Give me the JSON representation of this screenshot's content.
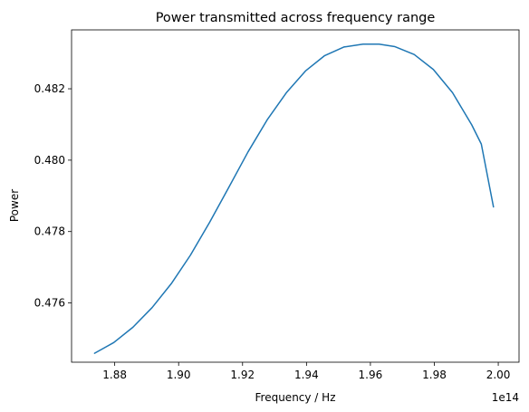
{
  "chart_data": {
    "type": "line",
    "title": "Power transmitted across frequency range",
    "xlabel": "Frequency / Hz",
    "ylabel": "Power",
    "x_offset_label": "1e14",
    "xlim": [
      1.8665,
      2.0065
    ],
    "ylim": [
      0.47434,
      0.48365
    ],
    "x_ticks": [
      1.88,
      1.9,
      1.92,
      1.94,
      1.96,
      1.98,
      2.0
    ],
    "x_tick_labels": [
      "1.88",
      "1.90",
      "1.92",
      "1.94",
      "1.96",
      "1.98",
      "2.00"
    ],
    "y_ticks": [
      0.476,
      0.478,
      0.48,
      0.482
    ],
    "y_tick_labels": [
      "0.476",
      "0.478",
      "0.480",
      "0.482"
    ],
    "grid": false,
    "series": [
      {
        "color": "#1f77b4",
        "x": [
          1.8737,
          1.8797,
          1.8857,
          1.8917,
          1.8977,
          1.9037,
          1.9097,
          1.9157,
          1.9217,
          1.9277,
          1.9337,
          1.9397,
          1.9457,
          1.9517,
          1.9577,
          1.9627,
          1.9677,
          1.9737,
          1.9797,
          1.9857,
          1.9917,
          1.9947,
          1.9985
        ],
        "y": [
          0.47459,
          0.47489,
          0.47532,
          0.47587,
          0.47654,
          0.47734,
          0.47826,
          0.47924,
          0.48023,
          0.48113,
          0.48189,
          0.4825,
          0.48293,
          0.48317,
          0.48325,
          0.48325,
          0.48318,
          0.48296,
          0.48254,
          0.48189,
          0.48099,
          0.48045,
          0.47869
        ]
      }
    ]
  }
}
